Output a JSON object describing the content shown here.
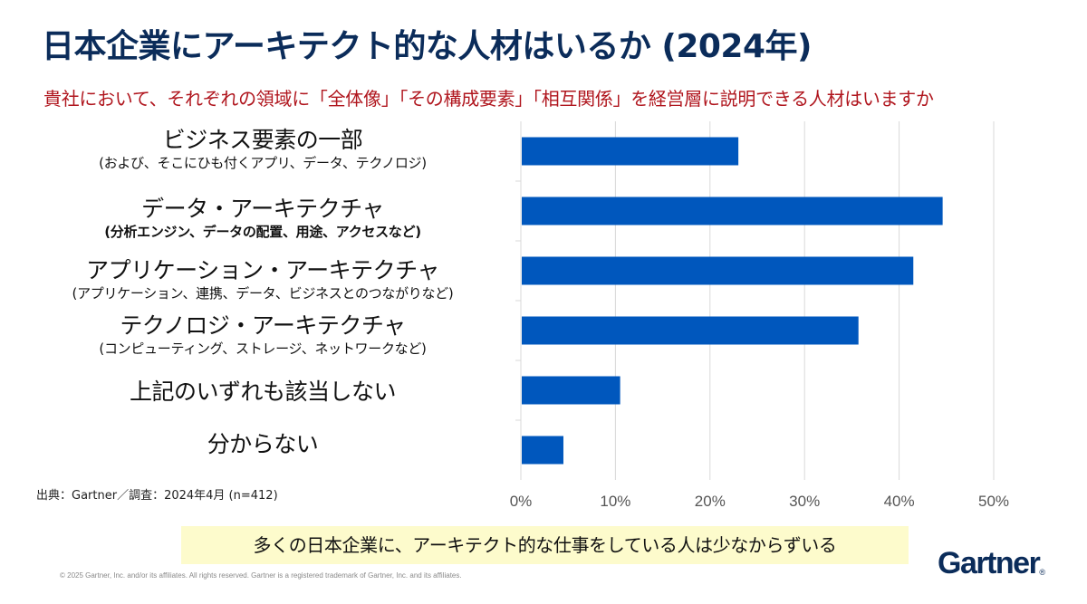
{
  "header": {
    "title": "日本企業にアーキテクト的な人材はいるか (2024年)",
    "subtitle": "貴社において、それぞれの領域に「全体像」「その構成要素」「相互関係」を経営層に説明できる人材はいますか"
  },
  "categories": [
    {
      "main": "ビジネス要素の一部",
      "sub": "(および、そこにひも付くアプリ、データ、テクノロジ)",
      "sub_bold": false
    },
    {
      "main": "データ・アーキテクチャ",
      "sub": "(分析エンジン、データの配置、用途、アクセスなど)",
      "sub_bold": true
    },
    {
      "main": "アプリケーション・アーキテクチャ",
      "sub": "(アプリケーション、連携、データ、ビジネスとのつながりなど)",
      "sub_bold": false
    },
    {
      "main": "テクノロジ・アーキテクチャ",
      "sub": "(コンピューティング、ストレージ、ネットワークなど)",
      "sub_bold": false
    },
    {
      "main": "上記のいずれも該当しない",
      "sub": null,
      "sub_bold": false
    },
    {
      "main": "分からない",
      "sub": null,
      "sub_bold": false
    }
  ],
  "source": "出典：Gartner／調査：2024年4月 (n=412)",
  "highlight": "多くの日本企業に、アーキテクト的な仕事をしている人は少なからずいる",
  "footer": {
    "copyright": "© 2025 Gartner, Inc. and/or its affiliates. All rights reserved. Gartner is a registered trademark of Gartner, Inc. and its affiliates.",
    "logo": "Gartner",
    "logo_mark": "®"
  },
  "colors": {
    "bar": "#0057bd",
    "grid": "#d9d9d9",
    "title": "#0b2c5a",
    "subtitle": "#b0161e",
    "highlight_bg": "#fdfbcc"
  },
  "chart_data": {
    "type": "bar",
    "orientation": "horizontal",
    "title": "日本企業にアーキテクト的な人材はいるか (2024年)",
    "categories": [
      "ビジネス要素の一部",
      "データ・アーキテクチャ",
      "アプリケーション・アーキテクチャ",
      "テクノロジ・アーキテクチャ",
      "上記のいずれも該当しない",
      "分からない"
    ],
    "values": [
      23.0,
      44.6,
      41.5,
      35.7,
      10.5,
      4.5
    ],
    "unit": "%",
    "xlabel": "",
    "ylabel": "",
    "xlim": [
      0,
      50
    ],
    "xticks": [
      0,
      10,
      20,
      30,
      40,
      50
    ],
    "xtick_labels": [
      "0%",
      "10%",
      "20%",
      "30%",
      "40%",
      "50%"
    ],
    "grid": true,
    "legend": "none"
  }
}
